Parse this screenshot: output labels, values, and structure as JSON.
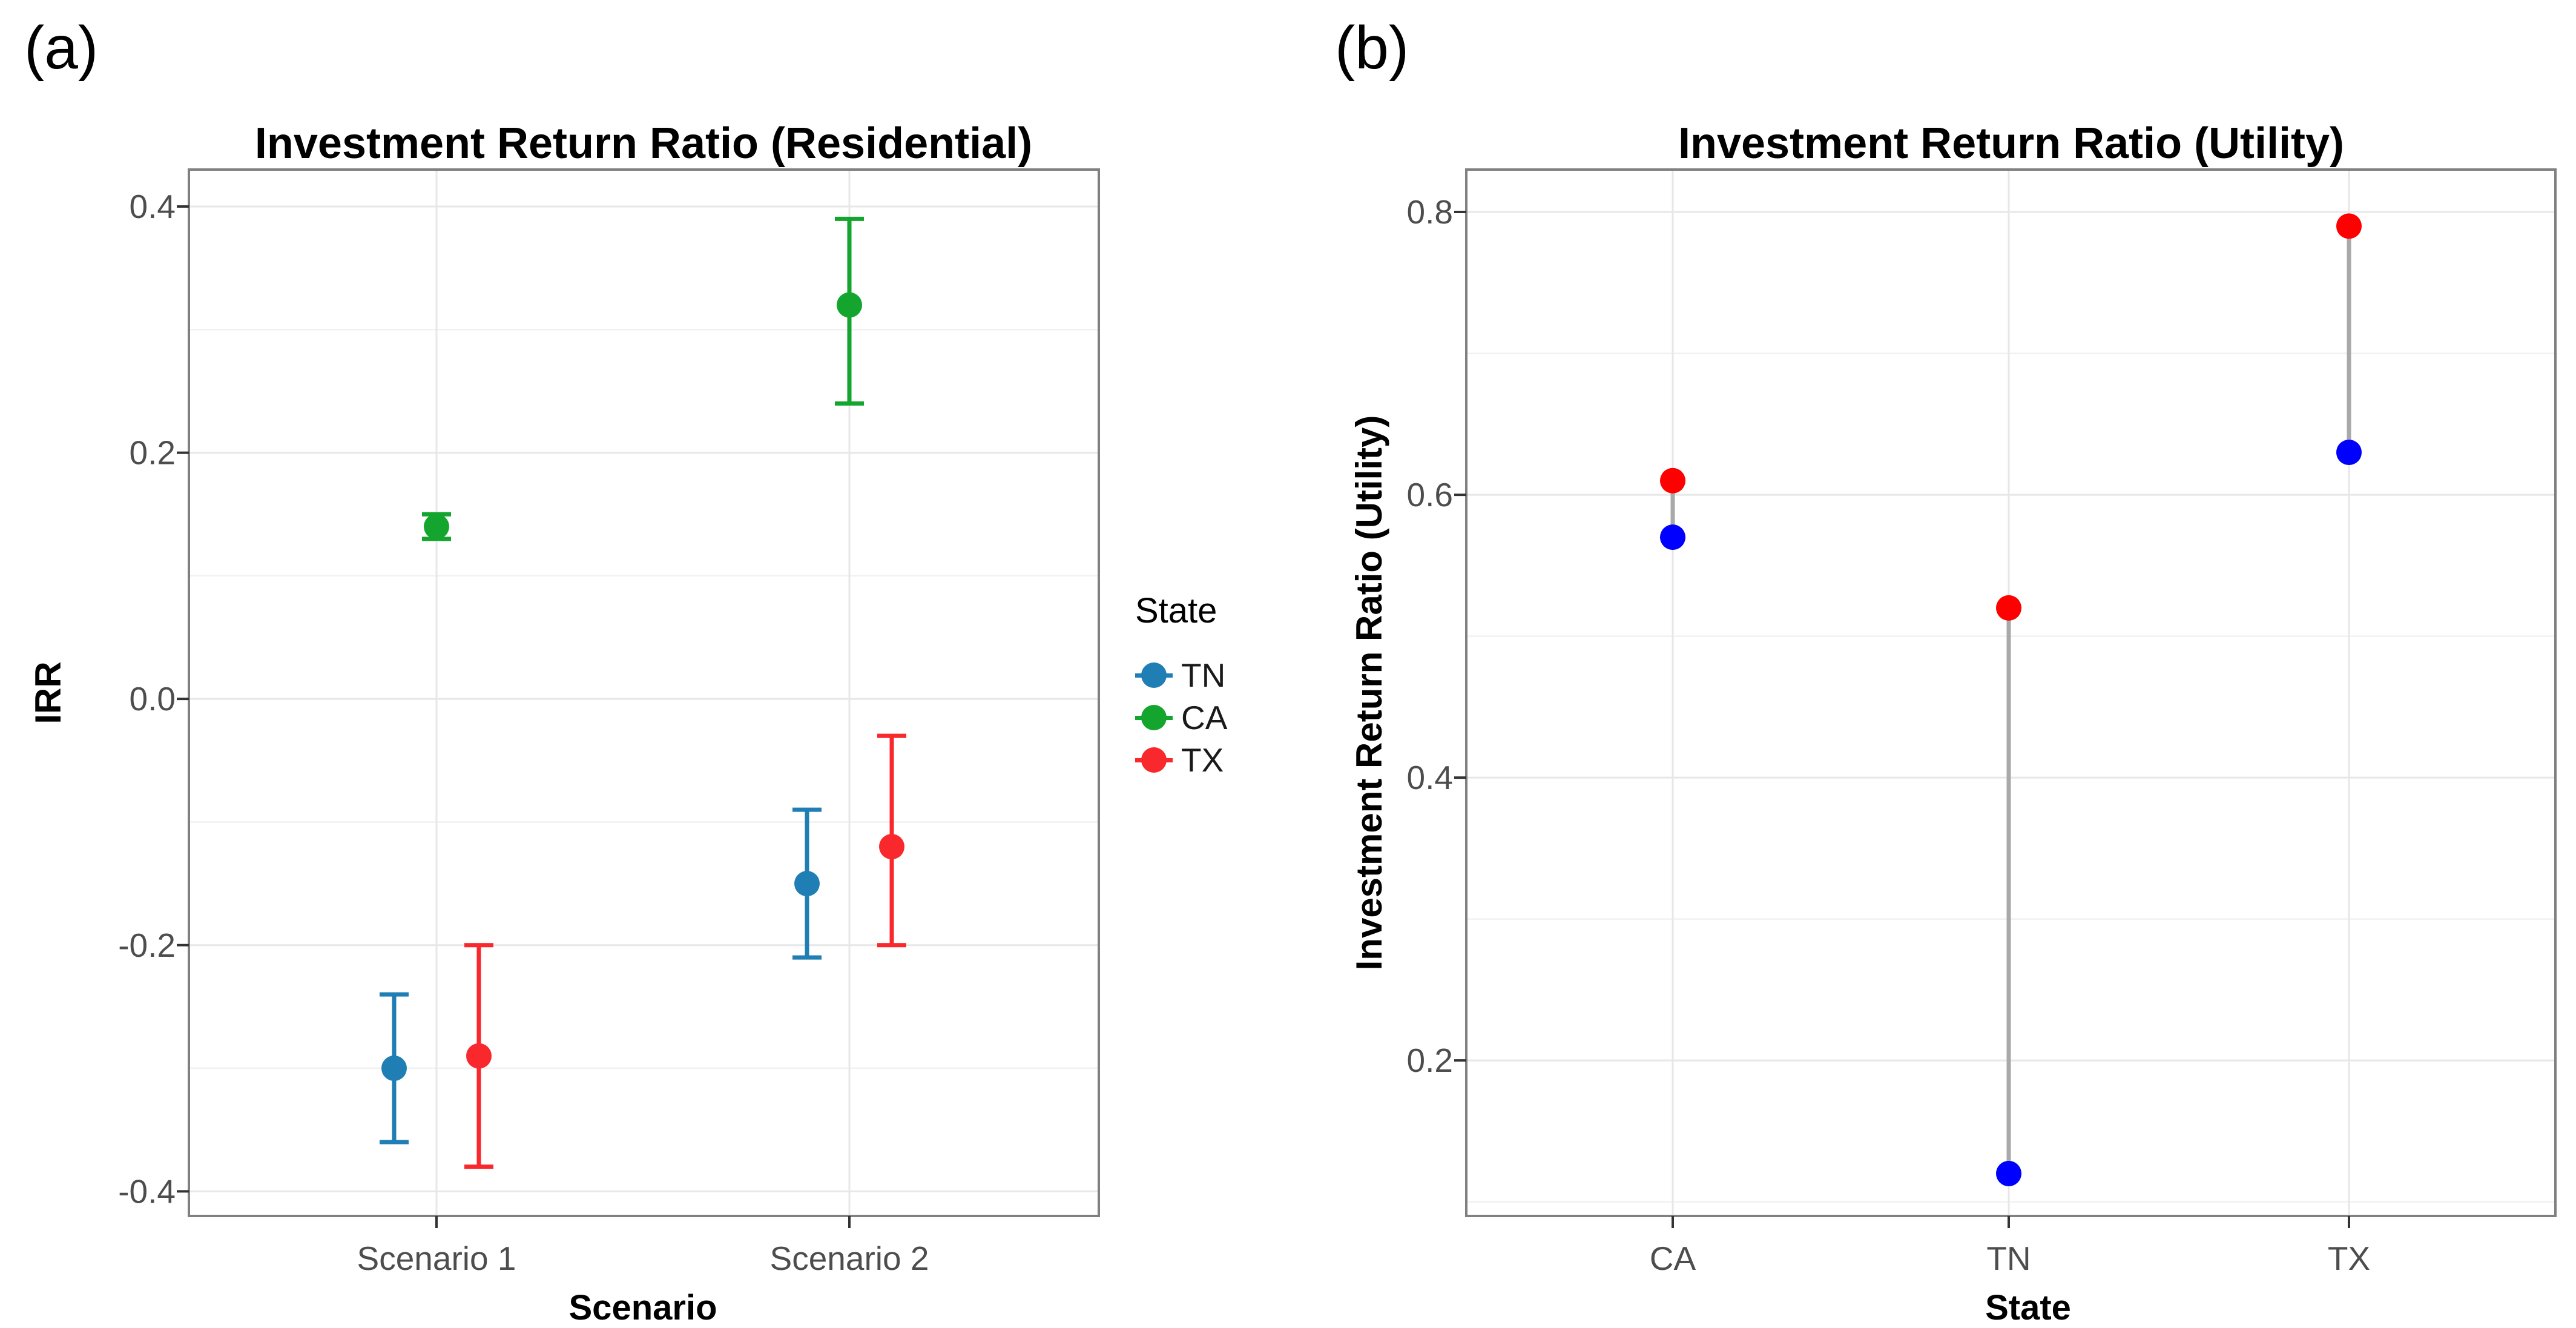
{
  "figure": {
    "tag_a": "(a)",
    "tag_b": "(b)"
  },
  "legend": {
    "title": "State",
    "items": [
      {
        "label": "TN",
        "color": "#1F7EB4"
      },
      {
        "label": "CA",
        "color": "#13A52E"
      },
      {
        "label": "TX",
        "color": "#F8282C"
      }
    ]
  },
  "colors": {
    "panel_border": "#808080",
    "grid_major": "#E7E7E7",
    "grid_minor": "#F1F1F1",
    "tick_text": "#4D4D4D",
    "tick_mark": "#333333",
    "connector": "#A9A9A9",
    "chart_b_red": "#FE0000",
    "chart_b_blue": "#0000FE"
  },
  "chart_data": [
    {
      "id": "a",
      "type": "scatter",
      "title": "Investment Return Ratio (Residential)",
      "xlabel": "Scenario",
      "ylabel": "IRR",
      "categories": [
        "Scenario 1",
        "Scenario 2"
      ],
      "ylim": [
        -0.42,
        0.43
      ],
      "grid": true,
      "legend_position": "right",
      "yticks": [
        {
          "label": "0.4",
          "value": 0.4
        },
        {
          "label": "0.2",
          "value": 0.2
        },
        {
          "label": "0.0",
          "value": 0.0
        },
        {
          "label": "-0.2",
          "value": -0.2
        },
        {
          "label": "-0.4",
          "value": -0.4
        }
      ],
      "yticks_minor": [
        0.3,
        0.1,
        -0.1,
        -0.3
      ],
      "series": [
        {
          "name": "TN",
          "color": "#1F7EB4",
          "points": [
            {
              "category": "Scenario 1",
              "y": -0.3,
              "ymin": -0.36,
              "ymax": -0.24
            },
            {
              "category": "Scenario 2",
              "y": -0.15,
              "ymin": -0.21,
              "ymax": -0.09
            }
          ]
        },
        {
          "name": "CA",
          "color": "#13A52E",
          "points": [
            {
              "category": "Scenario 1",
              "y": 0.14,
              "ymin": 0.13,
              "ymax": 0.15
            },
            {
              "category": "Scenario 2",
              "y": 0.32,
              "ymin": 0.24,
              "ymax": 0.39
            }
          ]
        },
        {
          "name": "TX",
          "color": "#F8282C",
          "points": [
            {
              "category": "Scenario 1",
              "y": -0.29,
              "ymin": -0.38,
              "ymax": -0.2
            },
            {
              "category": "Scenario 2",
              "y": -0.12,
              "ymin": -0.2,
              "ymax": -0.03
            }
          ]
        }
      ]
    },
    {
      "id": "b",
      "type": "scatter",
      "title": "Investment Return Ratio (Utility)",
      "xlabel": "State",
      "ylabel": "Investment Return Ratio (Utility)",
      "categories": [
        "CA",
        "TN",
        "TX"
      ],
      "ylim": [
        0.09,
        0.83
      ],
      "grid": true,
      "legend_position": "none",
      "yticks": [
        {
          "label": "0.8",
          "value": 0.8
        },
        {
          "label": "0.6",
          "value": 0.6
        },
        {
          "label": "0.4",
          "value": 0.4
        },
        {
          "label": "0.2",
          "value": 0.2
        }
      ],
      "yticks_minor": [
        0.7,
        0.5,
        0.3,
        0.1
      ],
      "series": [
        {
          "name": "series-red",
          "color": "#FE0000",
          "points": [
            {
              "category": "CA",
              "y": 0.61
            },
            {
              "category": "TN",
              "y": 0.52
            },
            {
              "category": "TX",
              "y": 0.79
            }
          ]
        },
        {
          "name": "series-blue",
          "color": "#0000FE",
          "points": [
            {
              "category": "CA",
              "y": 0.57
            },
            {
              "category": "TN",
              "y": 0.12
            },
            {
              "category": "TX",
              "y": 0.63
            }
          ]
        }
      ],
      "connectors": [
        {
          "category": "CA",
          "from": 0.61,
          "to": 0.57
        },
        {
          "category": "TN",
          "from": 0.52,
          "to": 0.12
        },
        {
          "category": "TX",
          "from": 0.79,
          "to": 0.63
        }
      ]
    }
  ]
}
